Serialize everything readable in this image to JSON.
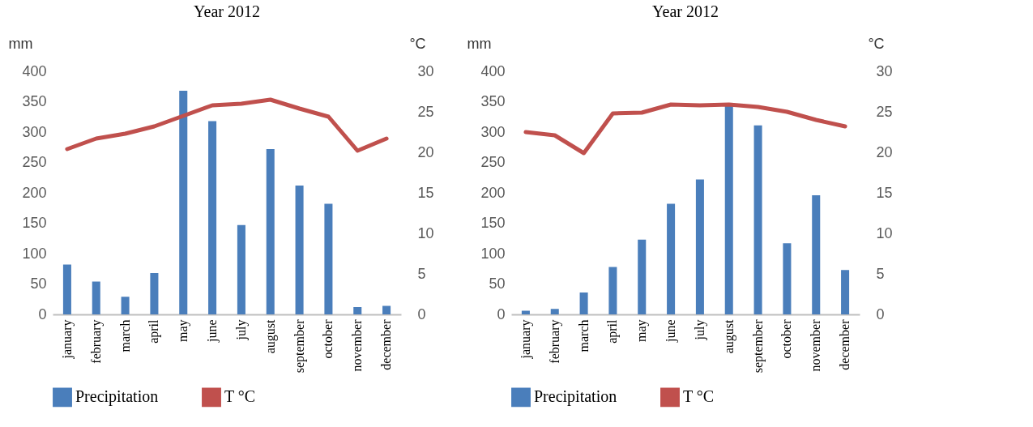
{
  "chart_data": [
    {
      "type": "bar",
      "title": "Year 2012",
      "ylabel": "mm",
      "y2label": "°C",
      "categories": [
        "january",
        "february",
        "march",
        "april",
        "may",
        "june",
        "july",
        "august",
        "september",
        "october",
        "november",
        "december"
      ],
      "series": [
        {
          "name": "Precipitation",
          "color": "#4a7ebb",
          "values": [
            82,
            54,
            29,
            68,
            368,
            318,
            147,
            272,
            212,
            182,
            12,
            14
          ]
        },
        {
          "name": "T °C",
          "type": "line",
          "axis": "y2",
          "color": "#c0504d",
          "values": [
            20.4,
            21.7,
            22.3,
            23.2,
            24.5,
            25.8,
            26.0,
            26.5,
            25.4,
            24.4,
            20.2,
            21.7
          ]
        }
      ],
      "ylim": [
        0,
        400
      ],
      "yticks": [
        0,
        50,
        100,
        150,
        200,
        250,
        300,
        350,
        400
      ],
      "y2lim": [
        0,
        30
      ],
      "y2ticks": [
        0,
        5,
        10,
        15,
        20,
        25,
        30
      ],
      "grid": false,
      "legend": "bottom",
      "marker": "none",
      "line_style": "solid"
    },
    {
      "type": "bar",
      "title": "Year 2012",
      "ylabel": "mm",
      "y2label": "°C",
      "categories": [
        "january",
        "february",
        "march",
        "april",
        "may",
        "june",
        "july",
        "august",
        "september",
        "october",
        "november",
        "december"
      ],
      "series": [
        {
          "name": "Precipitation",
          "color": "#4a7ebb",
          "values": [
            6,
            9,
            36,
            78,
            123,
            182,
            222,
            345,
            311,
            117,
            196,
            73
          ]
        },
        {
          "name": "T °C",
          "type": "line",
          "axis": "y2",
          "color": "#c0504d",
          "values": [
            22.5,
            22.1,
            19.9,
            24.8,
            24.9,
            25.9,
            25.8,
            25.9,
            25.6,
            25.0,
            24.0,
            23.2
          ]
        }
      ],
      "ylim": [
        0,
        400
      ],
      "yticks": [
        0,
        50,
        100,
        150,
        200,
        250,
        300,
        350,
        400
      ],
      "y2lim": [
        0,
        30
      ],
      "y2ticks": [
        0,
        5,
        10,
        15,
        20,
        25,
        30
      ],
      "grid": false,
      "legend": "bottom",
      "marker": "none",
      "line_style": "solid"
    }
  ]
}
